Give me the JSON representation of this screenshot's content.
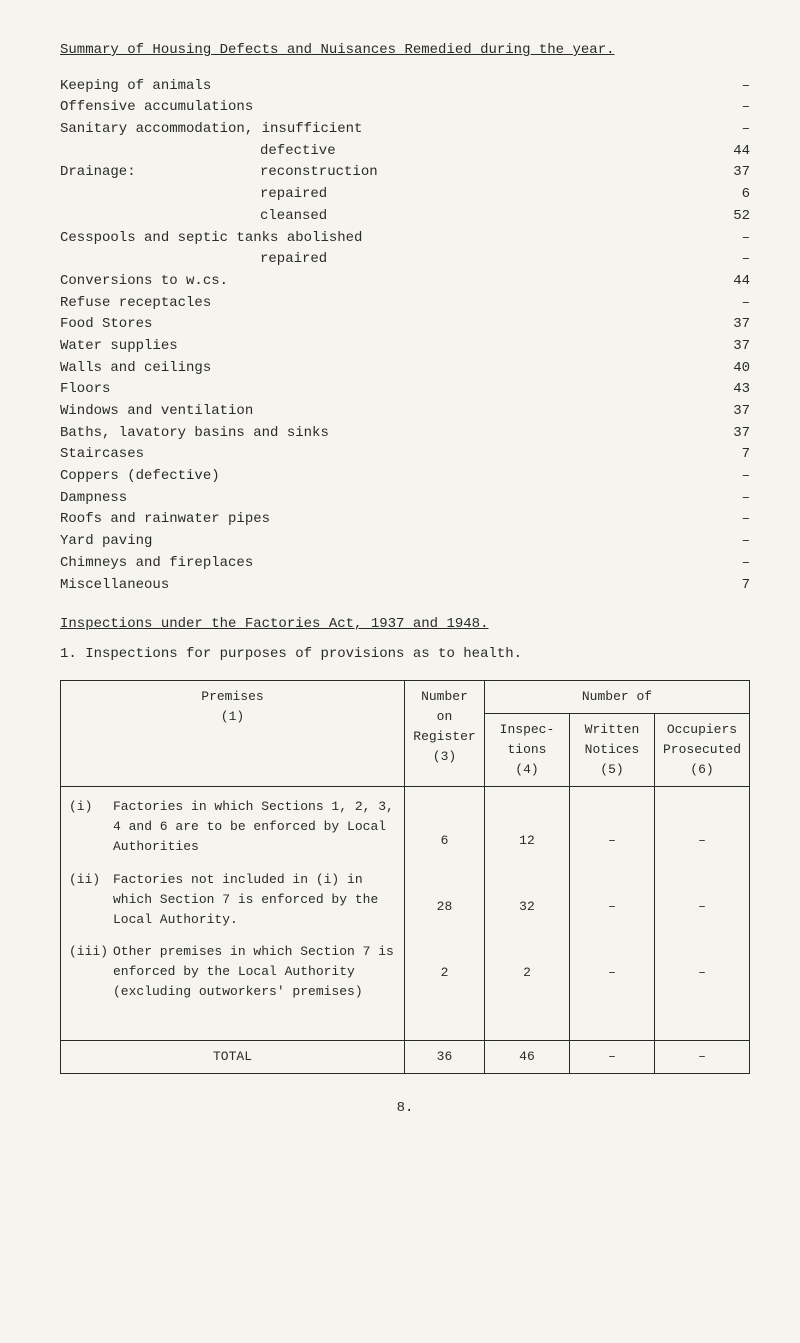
{
  "title": "Summary of Housing Defects and Nuisances Remedied during the year.",
  "summary_rows": [
    {
      "label": "Keeping of animals",
      "value": "–"
    },
    {
      "label": "Offensive accumulations",
      "value": "–"
    },
    {
      "label": "Sanitary accommodation,  insufficient",
      "value": "–"
    },
    {
      "label_indent": "defective",
      "value": "44"
    },
    {
      "lead": "Drainage:",
      "label_cont": "reconstruction",
      "value": "37"
    },
    {
      "label_indent": "repaired",
      "value": "6"
    },
    {
      "label_indent": "cleansed",
      "value": "52"
    },
    {
      "label": "Cesspools and septic tanks abolished",
      "value": "–"
    },
    {
      "label_indent": "repaired",
      "value": "–"
    },
    {
      "label": "Conversions to w.cs.",
      "value": "44"
    },
    {
      "label": "Refuse receptacles",
      "value": "–"
    },
    {
      "label": "Food Stores",
      "value": "37"
    },
    {
      "label": "Water supplies",
      "value": "37"
    },
    {
      "label": "Walls and ceilings",
      "value": "40"
    },
    {
      "label": "Floors",
      "value": "43"
    },
    {
      "label": "Windows and ventilation",
      "value": "37"
    },
    {
      "label": "Baths, lavatory basins and sinks",
      "value": "37"
    },
    {
      "label": "Staircases",
      "value": "7"
    },
    {
      "label": "Coppers (defective)",
      "value": "–"
    },
    {
      "label": "Dampness",
      "value": "–"
    },
    {
      "label": "Roofs and rainwater pipes",
      "value": "–"
    },
    {
      "label": "Yard paving",
      "value": "–"
    },
    {
      "label": "Chimneys and fireplaces",
      "value": "–"
    },
    {
      "label": "Miscellaneous",
      "value": "7"
    }
  ],
  "subtitle": "Inspections under the Factories Act, 1937 and 1948.",
  "intro": "1.  Inspections for purposes of provisions as to health.",
  "table": {
    "header": {
      "premises": "Premises",
      "premises_sub": "(1)",
      "number_on_register": "Number on Register",
      "number_on_register_sub": "(3)",
      "number_of": "Number of",
      "inspections": "Inspec- tions",
      "inspections_sub": "(4)",
      "written": "Written Notices",
      "written_sub": "(5)",
      "occupiers": "Occupiers Prosecuted",
      "occupiers_sub": "(6)"
    },
    "rows": [
      {
        "marker": "(i)",
        "text": "Factories in which Sections 1, 2, 3, 4 and 6 are to be enforced by Local Authorities",
        "reg": "6",
        "insp": "12",
        "wr": "–",
        "occ": "–"
      },
      {
        "marker": "(ii)",
        "text": "Factories not included in (i) in which Section 7 is enforced by the Local Authority.",
        "reg": "28",
        "insp": "32",
        "wr": "–",
        "occ": "–"
      },
      {
        "marker": "(iii)",
        "text": "Other premises in which Section 7 is enforced by the Local Authority (excluding outworkers' premises)",
        "reg": "2",
        "insp": "2",
        "wr": "–",
        "occ": "–"
      }
    ],
    "total_label": "TOTAL",
    "total": {
      "reg": "36",
      "insp": "46",
      "wr": "–",
      "occ": "–"
    }
  },
  "page_number": "8."
}
